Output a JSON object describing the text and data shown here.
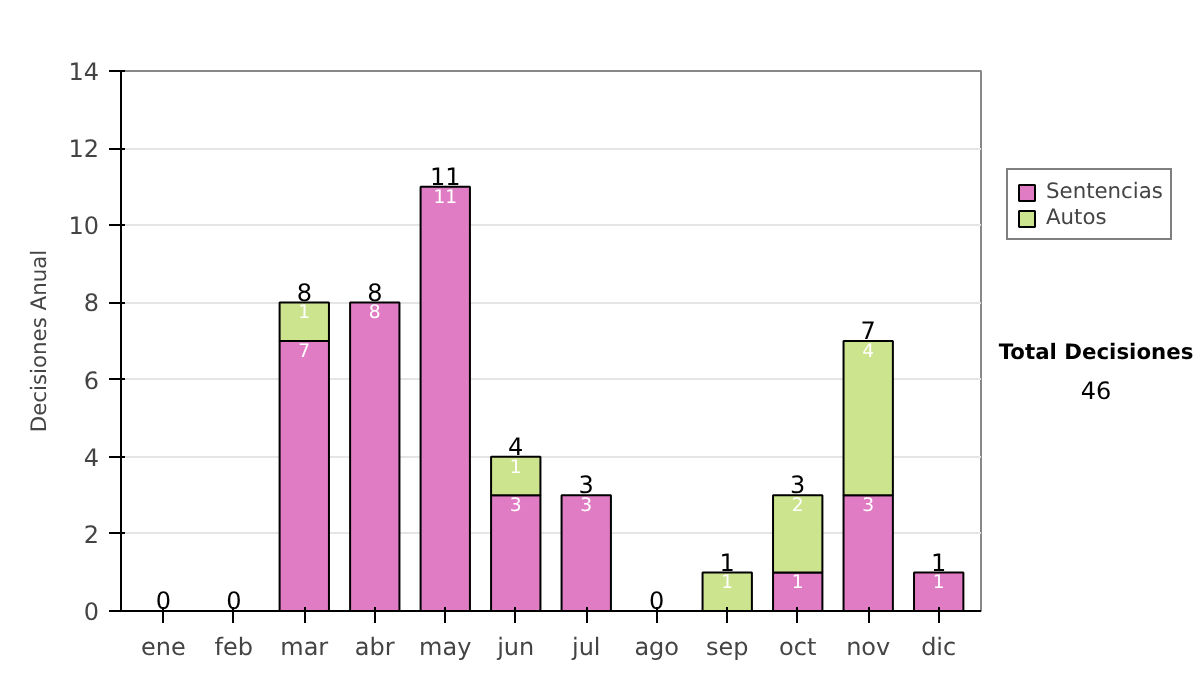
{
  "chart_data": {
    "type": "bar",
    "stacked": true,
    "ylabel": "Decisiones Anual",
    "categories": [
      "ene",
      "feb",
      "mar",
      "abr",
      "may",
      "jun",
      "jul",
      "ago",
      "sep",
      "oct",
      "nov",
      "dic"
    ],
    "series": [
      {
        "name": "Sentencias",
        "color": "#e07cc4",
        "values": [
          0,
          0,
          7,
          8,
          11,
          3,
          3,
          0,
          0,
          1,
          3,
          1
        ],
        "value_labels": [
          null,
          null,
          "7",
          "8",
          "11",
          "3",
          "3",
          null,
          null,
          "1",
          "3",
          "1"
        ]
      },
      {
        "name": "Autos",
        "color": "#cce48e",
        "values": [
          0,
          0,
          1,
          0,
          0,
          1,
          0,
          0,
          1,
          2,
          4,
          0
        ],
        "value_labels": [
          null,
          null,
          "1",
          null,
          null,
          "1",
          null,
          null,
          "1",
          "2",
          "4",
          null
        ]
      }
    ],
    "totals": [
      "0",
      "0",
      "8",
      "8",
      "11",
      "4",
      "3",
      "0",
      "1",
      "3",
      "7",
      "1"
    ],
    "ylim": [
      0,
      14
    ],
    "yticks": [
      0,
      2,
      4,
      6,
      8,
      10,
      12,
      14
    ],
    "grid": "y",
    "legend": "right",
    "annotations": [
      "Total Decisiones",
      "46"
    ]
  }
}
